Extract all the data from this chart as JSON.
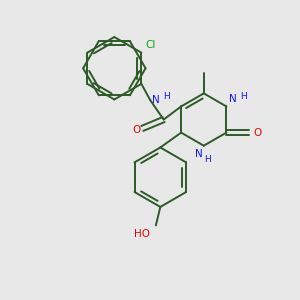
{
  "bg_color": "#e8e8e8",
  "bond_color": "#2d5a27",
  "n_color": "#1414ff",
  "o_color": "#ee0000",
  "cl_color": "#00aa00",
  "figsize": [
    3.0,
    3.0
  ],
  "dpi": 100,
  "lw": 1.4,
  "fs": 7.5,
  "xlim": [
    0,
    10
  ],
  "ylim": [
    0,
    10
  ]
}
